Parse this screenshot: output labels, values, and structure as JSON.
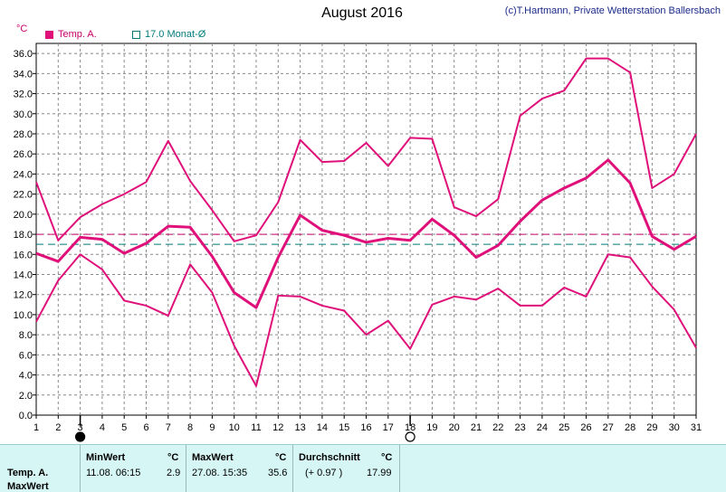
{
  "header": {
    "title": "August 2016",
    "copyright": "(c)T.Hartmann, Private Wetterstation Ballersbach",
    "unit": "°C"
  },
  "legend": {
    "temp_label": "Temp. A.",
    "monthly_label": "17.0 Monat-Ø"
  },
  "colors": {
    "series": "#e0107a",
    "monthly_line": "#007a7a",
    "average_line": "#c8006a",
    "info_bg": "#d6f6f6"
  },
  "chart_data": {
    "type": "line",
    "x": [
      1,
      2,
      3,
      4,
      5,
      6,
      7,
      8,
      9,
      10,
      11,
      12,
      13,
      14,
      15,
      16,
      17,
      18,
      19,
      20,
      21,
      22,
      23,
      24,
      25,
      26,
      27,
      28,
      29,
      30,
      31
    ],
    "ylim": [
      0,
      37
    ],
    "yticks": [
      "0.0",
      "2.0",
      "4.0",
      "6.0",
      "8.0",
      "10.0",
      "12.0",
      "14.0",
      "16.0",
      "18.0",
      "20.0",
      "22.0",
      "24.0",
      "26.0",
      "28.0",
      "30.0",
      "32.0",
      "34.0",
      "36.0"
    ],
    "grid": true,
    "series": [
      {
        "name": "Temp. A.",
        "role": "max",
        "values": [
          23.2,
          17.4,
          19.7,
          21.0,
          22.0,
          23.2,
          27.3,
          23.3,
          20.4,
          17.3,
          17.9,
          21.2,
          27.4,
          25.2,
          25.3,
          27.1,
          24.8,
          27.6,
          27.5,
          20.7,
          19.8,
          21.5,
          29.8,
          31.5,
          32.3,
          35.5,
          35.5,
          34.1,
          22.6,
          24.0,
          28.0
        ]
      },
      {
        "role": "mean",
        "values": [
          16.1,
          15.3,
          17.7,
          17.5,
          16.1,
          17.1,
          18.8,
          18.7,
          15.8,
          12.2,
          10.7,
          15.7,
          19.9,
          18.4,
          17.9,
          17.2,
          17.6,
          17.4,
          19.5,
          17.9,
          15.7,
          16.9,
          19.3,
          21.4,
          22.6,
          23.6,
          25.4,
          23.1,
          17.8,
          16.5,
          17.8
        ]
      },
      {
        "role": "min",
        "values": [
          9.3,
          13.4,
          16.0,
          14.5,
          11.4,
          10.9,
          9.9,
          15.0,
          12.2,
          6.9,
          2.9,
          11.9,
          11.8,
          10.9,
          10.4,
          8.0,
          9.4,
          6.6,
          11.0,
          11.8,
          11.5,
          12.6,
          10.9,
          10.9,
          12.7,
          11.8,
          16.0,
          15.7,
          12.8,
          10.5,
          6.7
        ]
      }
    ],
    "reference_lines": [
      {
        "label": "17.0 Monat-Ø",
        "value": 17.0,
        "color": "#007a7a"
      },
      {
        "value": 17.99,
        "color": "#c8006a"
      }
    ],
    "markers": [
      {
        "day": 3,
        "symbol": "new-moon"
      },
      {
        "day": 18,
        "symbol": "full-moon"
      }
    ]
  },
  "info_panel": {
    "row_label_1": "Temp. A.",
    "row_label_2": "MaxWert",
    "min_header": "MinWert",
    "min_unit": "°C",
    "min_when": "11.08.  06:15",
    "min_value": "2.9",
    "max_header": "MaxWert",
    "max_unit": "°C",
    "max_when": "27.08.  15:35",
    "max_value": "35.6",
    "avg_header": "Durchschnitt",
    "avg_unit": "°C",
    "avg_diff": "(+ 0.97 )",
    "avg_value": "17.99"
  }
}
